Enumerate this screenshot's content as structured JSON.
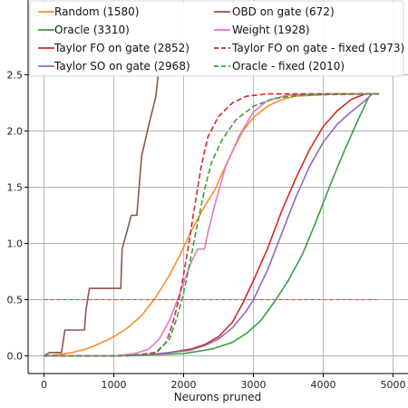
{
  "chart_data": {
    "type": "line",
    "title": "",
    "xlabel": "Neurons pruned",
    "ylabel": "",
    "xlim": [
      -200,
      5050
    ],
    "ylim": [
      -0.08,
      2.63
    ],
    "xticks": [
      0,
      1000,
      2000,
      3000,
      4000,
      5000
    ],
    "yticks": [
      0.0,
      0.5,
      1.0,
      1.5,
      2.0,
      2.5
    ],
    "xtick_labels": [
      "0",
      "1000",
      "2000",
      "3000",
      "4000",
      "5000"
    ],
    "ytick_labels": [
      "0.0",
      "0.5",
      "1.0",
      "1.5",
      "2.0",
      "2.5"
    ],
    "grid": true,
    "legend_position": "top",
    "legend_columns": 2,
    "series": [
      {
        "name": "Random (1580)",
        "color": "#ff8c2a",
        "dash": "solid",
        "points": [
          [
            0,
            0.0
          ],
          [
            200,
            0.01
          ],
          [
            400,
            0.03
          ],
          [
            600,
            0.06
          ],
          [
            800,
            0.11
          ],
          [
            1000,
            0.17
          ],
          [
            1200,
            0.25
          ],
          [
            1400,
            0.36
          ],
          [
            1600,
            0.52
          ],
          [
            1800,
            0.72
          ],
          [
            1950,
            0.9
          ],
          [
            2100,
            1.1
          ],
          [
            2300,
            1.33
          ],
          [
            2450,
            1.48
          ],
          [
            2550,
            1.62
          ],
          [
            2700,
            1.82
          ],
          [
            2850,
            2.0
          ],
          [
            3000,
            2.12
          ],
          [
            3200,
            2.22
          ],
          [
            3400,
            2.28
          ],
          [
            3600,
            2.31
          ],
          [
            3900,
            2.32
          ],
          [
            4200,
            2.33
          ],
          [
            4700,
            2.33
          ]
        ]
      },
      {
        "name": "Oracle (3310)",
        "color": "#3a9e3a",
        "dash": "solid",
        "points": [
          [
            0,
            0.0
          ],
          [
            1000,
            0.0
          ],
          [
            1500,
            0.01
          ],
          [
            2000,
            0.02
          ],
          [
            2400,
            0.06
          ],
          [
            2700,
            0.12
          ],
          [
            2900,
            0.2
          ],
          [
            3100,
            0.31
          ],
          [
            3300,
            0.48
          ],
          [
            3500,
            0.67
          ],
          [
            3700,
            0.9
          ],
          [
            3900,
            1.2
          ],
          [
            4100,
            1.52
          ],
          [
            4300,
            1.82
          ],
          [
            4500,
            2.1
          ],
          [
            4650,
            2.3
          ],
          [
            4700,
            2.33
          ],
          [
            4800,
            2.33
          ]
        ]
      },
      {
        "name": "Taylor FO on gate (2852)",
        "color": "#d62728",
        "dash": "solid",
        "points": [
          [
            0,
            0.0
          ],
          [
            1000,
            0.0
          ],
          [
            1500,
            0.01
          ],
          [
            1800,
            0.03
          ],
          [
            2100,
            0.06
          ],
          [
            2300,
            0.1
          ],
          [
            2500,
            0.17
          ],
          [
            2700,
            0.3
          ],
          [
            2850,
            0.47
          ],
          [
            3000,
            0.67
          ],
          [
            3200,
            0.95
          ],
          [
            3400,
            1.28
          ],
          [
            3600,
            1.57
          ],
          [
            3800,
            1.83
          ],
          [
            4000,
            2.04
          ],
          [
            4200,
            2.18
          ],
          [
            4400,
            2.28
          ],
          [
            4600,
            2.33
          ],
          [
            4700,
            2.33
          ]
        ]
      },
      {
        "name": "Taylor SO on gate (2968)",
        "color": "#9467bd",
        "dash": "solid",
        "points": [
          [
            0,
            0.0
          ],
          [
            1000,
            0.0
          ],
          [
            1500,
            0.01
          ],
          [
            1800,
            0.03
          ],
          [
            2100,
            0.05
          ],
          [
            2300,
            0.09
          ],
          [
            2500,
            0.15
          ],
          [
            2700,
            0.25
          ],
          [
            2900,
            0.4
          ],
          [
            3000,
            0.5
          ],
          [
            3200,
            0.76
          ],
          [
            3400,
            1.08
          ],
          [
            3600,
            1.4
          ],
          [
            3800,
            1.68
          ],
          [
            4000,
            1.9
          ],
          [
            4200,
            2.06
          ],
          [
            4400,
            2.17
          ],
          [
            4600,
            2.27
          ],
          [
            4700,
            2.33
          ],
          [
            4750,
            2.33
          ]
        ]
      },
      {
        "name": "OBD on gate (672)",
        "color": "#8c564b",
        "dash": "solid",
        "points": [
          [
            0,
            0.0
          ],
          [
            80,
            0.03
          ],
          [
            250,
            0.03
          ],
          [
            300,
            0.23
          ],
          [
            580,
            0.23
          ],
          [
            600,
            0.4
          ],
          [
            650,
            0.6
          ],
          [
            1100,
            0.6
          ],
          [
            1120,
            0.95
          ],
          [
            1250,
            1.25
          ],
          [
            1330,
            1.25
          ],
          [
            1400,
            1.78
          ],
          [
            1500,
            2.05
          ],
          [
            1600,
            2.3
          ],
          [
            1660,
            2.63
          ]
        ]
      },
      {
        "name": "Weight (1928)",
        "color": "#e377c2",
        "dash": "solid",
        "points": [
          [
            0,
            0.0
          ],
          [
            1000,
            0.0
          ],
          [
            1300,
            0.02
          ],
          [
            1500,
            0.06
          ],
          [
            1650,
            0.15
          ],
          [
            1800,
            0.32
          ],
          [
            1900,
            0.48
          ],
          [
            2000,
            0.65
          ],
          [
            2100,
            0.82
          ],
          [
            2200,
            0.95
          ],
          [
            2300,
            0.95
          ],
          [
            2350,
            1.1
          ],
          [
            2450,
            1.35
          ],
          [
            2600,
            1.68
          ],
          [
            2800,
            1.96
          ],
          [
            3000,
            2.17
          ],
          [
            3200,
            2.27
          ],
          [
            3500,
            2.32
          ],
          [
            4000,
            2.33
          ],
          [
            4700,
            2.33
          ]
        ]
      },
      {
        "name": "Taylor FO on gate - fixed (1973)",
        "color": "#d62728",
        "dash": "dashed",
        "points": [
          [
            0,
            0.0
          ],
          [
            1200,
            0.0
          ],
          [
            1600,
            0.03
          ],
          [
            1750,
            0.12
          ],
          [
            1850,
            0.3
          ],
          [
            1950,
            0.55
          ],
          [
            2050,
            0.9
          ],
          [
            2150,
            1.3
          ],
          [
            2250,
            1.68
          ],
          [
            2350,
            1.95
          ],
          [
            2500,
            2.13
          ],
          [
            2700,
            2.25
          ],
          [
            2900,
            2.31
          ],
          [
            3200,
            2.33
          ],
          [
            4800,
            2.33
          ]
        ]
      },
      {
        "name": "Oracle - fixed (2010)",
        "color": "#3a9e3a",
        "dash": "dashed",
        "points": [
          [
            0,
            0.0
          ],
          [
            1200,
            0.0
          ],
          [
            1600,
            0.02
          ],
          [
            1800,
            0.15
          ],
          [
            1900,
            0.33
          ],
          [
            2000,
            0.56
          ],
          [
            2100,
            0.86
          ],
          [
            2200,
            1.18
          ],
          [
            2300,
            1.48
          ],
          [
            2400,
            1.72
          ],
          [
            2550,
            1.92
          ],
          [
            2750,
            2.1
          ],
          [
            3000,
            2.22
          ],
          [
            3300,
            2.29
          ],
          [
            3700,
            2.32
          ],
          [
            4800,
            2.33
          ]
        ]
      },
      {
        "name": "",
        "color": "#e04040",
        "dash": "dashed-thin",
        "points": [
          [
            0,
            0.5
          ],
          [
            4800,
            0.5
          ]
        ]
      }
    ]
  }
}
